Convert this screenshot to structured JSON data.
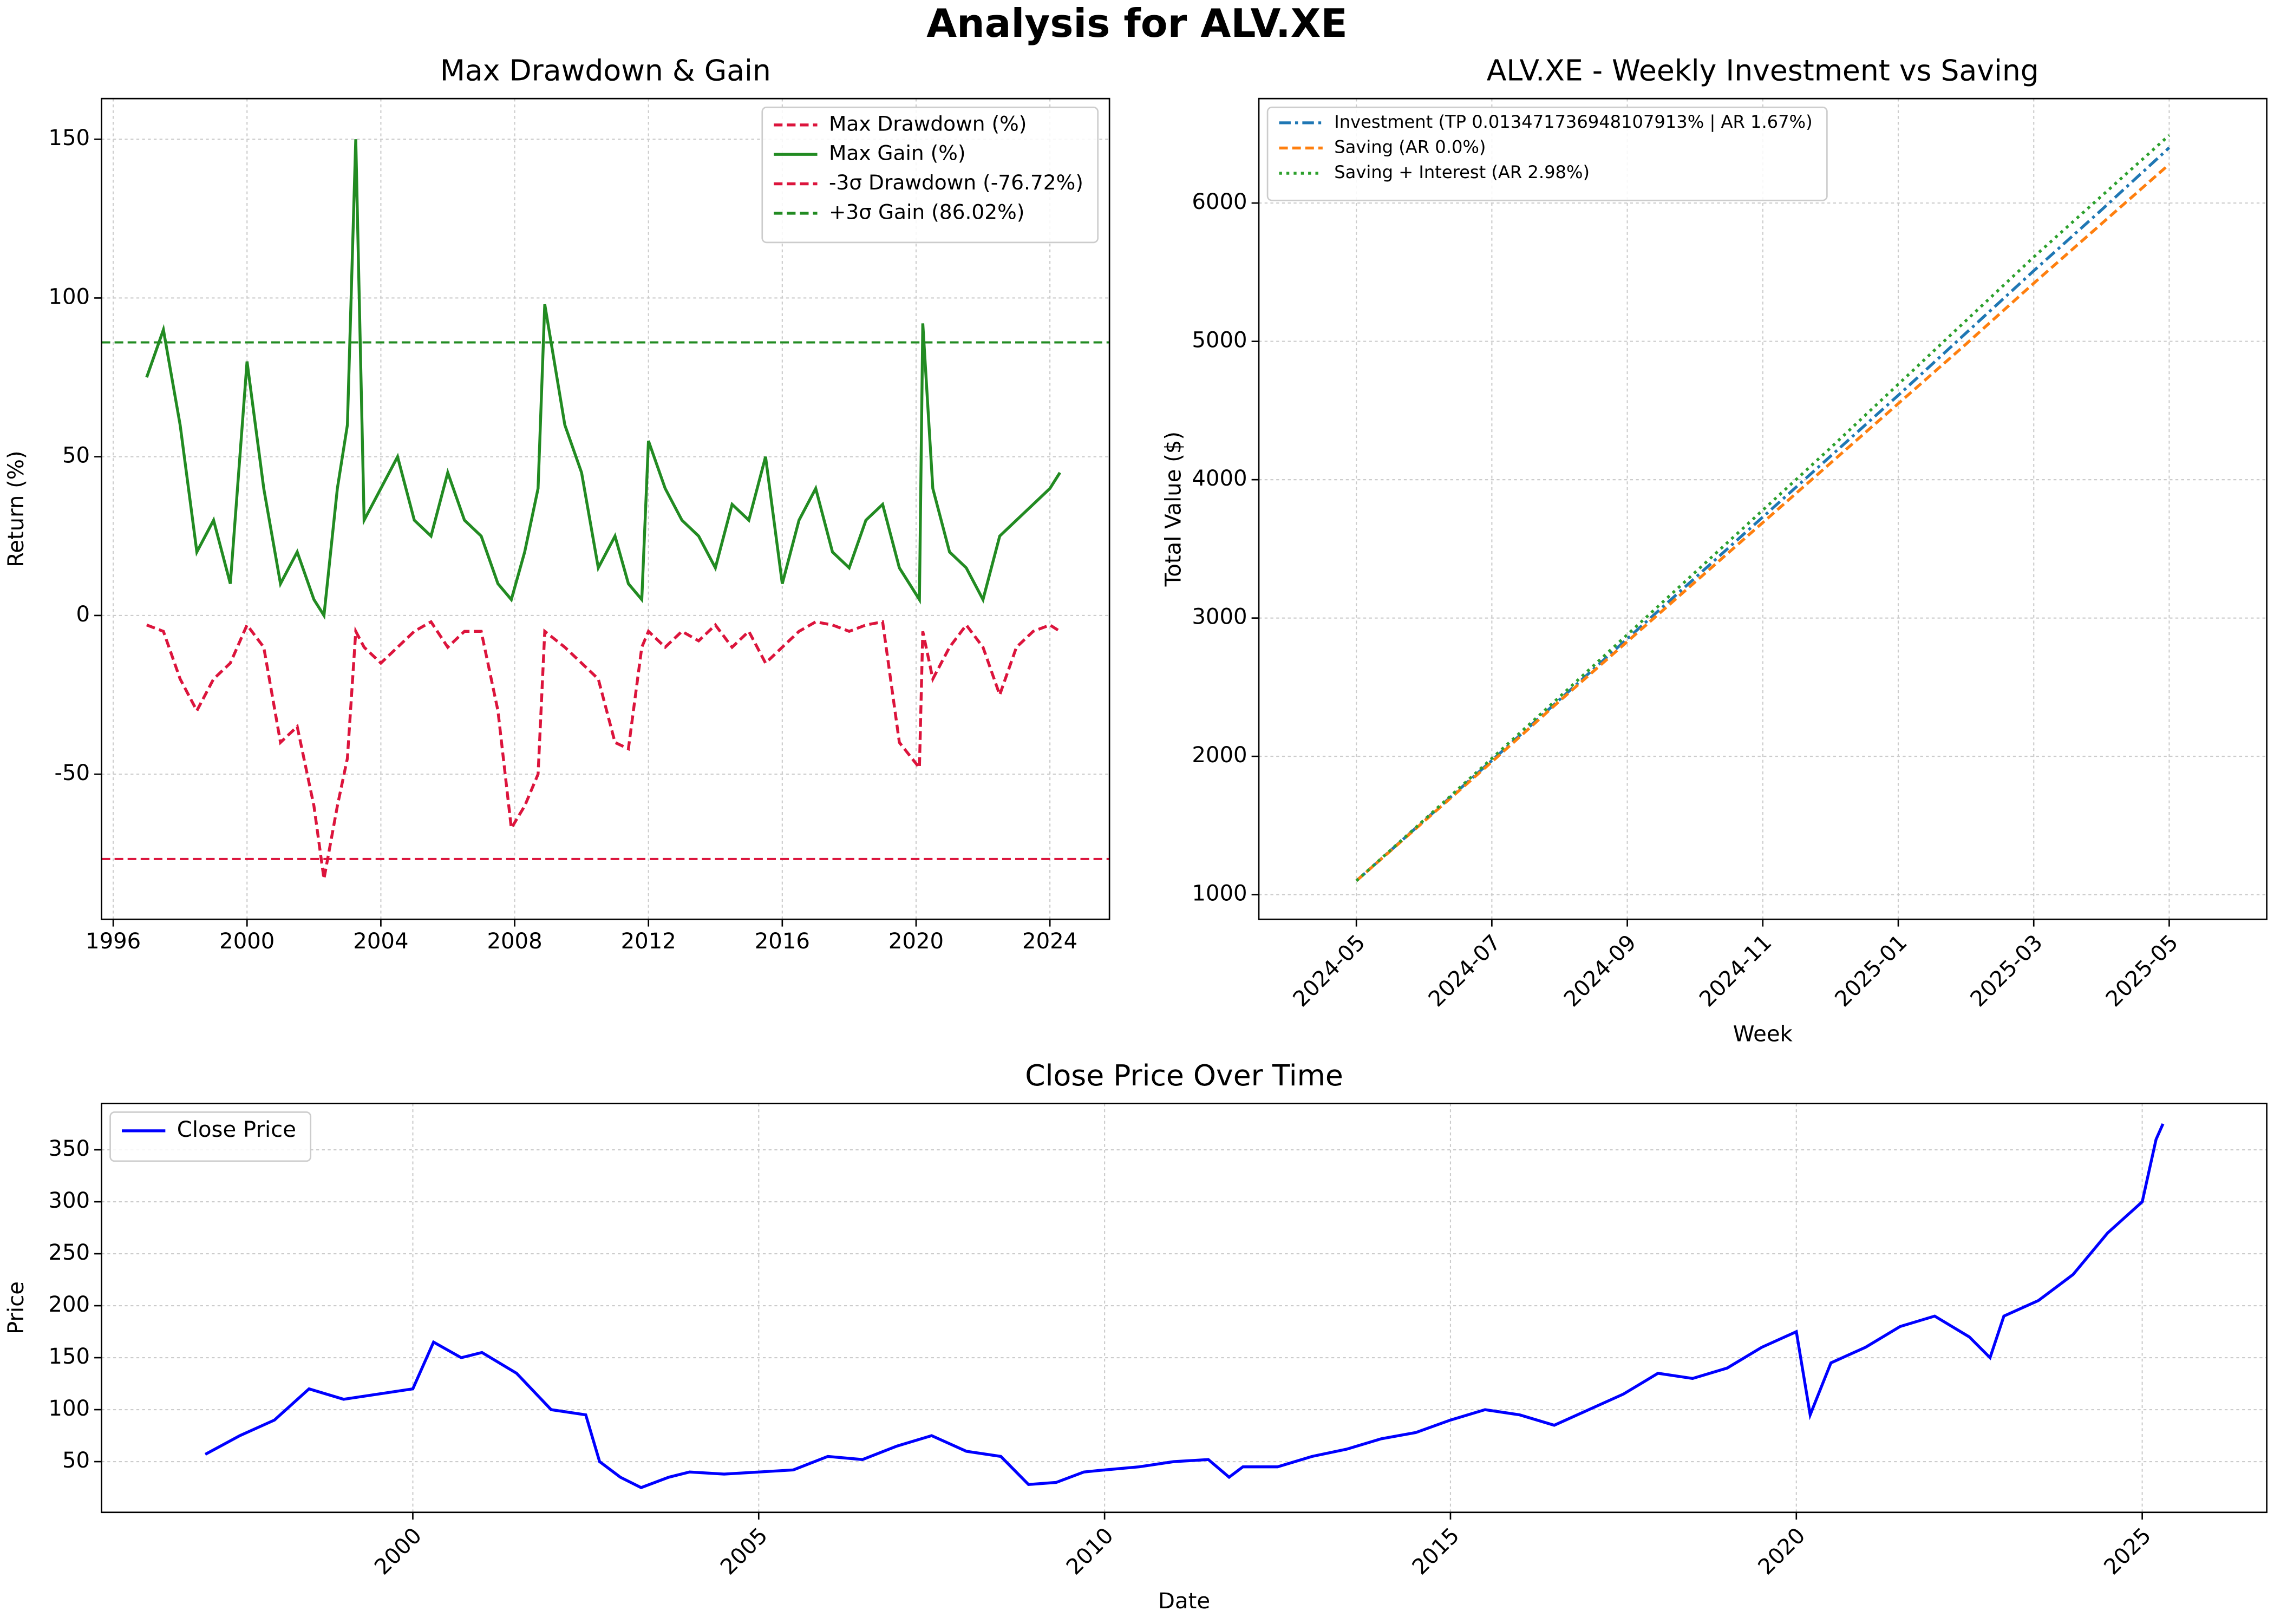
{
  "title": "Analysis for ALV.XE",
  "chart_data": [
    {
      "type": "line",
      "title": "Max Drawdown & Gain",
      "ylabel": "Return (%)",
      "x": [
        1997.0,
        1997.5,
        1998.0,
        1998.5,
        1999.0,
        1999.5,
        2000.0,
        2000.5,
        2001.0,
        2001.5,
        2002.0,
        2002.3,
        2002.7,
        2003.0,
        2003.25,
        2003.5,
        2004.0,
        2004.5,
        2005.0,
        2005.5,
        2006.0,
        2006.5,
        2007.0,
        2007.5,
        2007.9,
        2008.3,
        2008.7,
        2008.9,
        2009.5,
        2010.0,
        2010.5,
        2011.0,
        2011.4,
        2011.8,
        2012.0,
        2012.5,
        2013.0,
        2013.5,
        2014.0,
        2014.5,
        2015.0,
        2015.5,
        2016.0,
        2016.5,
        2017.0,
        2017.5,
        2018.0,
        2018.5,
        2019.0,
        2019.5,
        2020.1,
        2020.2,
        2020.5,
        2021.0,
        2021.5,
        2022.0,
        2022.5,
        2023.0,
        2023.5,
        2024.0,
        2024.3
      ],
      "series": [
        {
          "name": "Max Drawdown (%)",
          "color": "#dc143c",
          "style": "dashed",
          "values": [
            -3,
            -5,
            -20,
            -30,
            -20,
            -15,
            -3,
            -10,
            -40,
            -35,
            -60,
            -83,
            -60,
            -45,
            -5,
            -10,
            -15,
            -10,
            -5,
            -2,
            -10,
            -5,
            -5,
            -30,
            -67,
            -60,
            -50,
            -5,
            -10,
            -15,
            -20,
            -40,
            -42,
            -10,
            -5,
            -10,
            -5,
            -8,
            -3,
            -10,
            -5,
            -15,
            -10,
            -5,
            -2,
            -3,
            -5,
            -3,
            -2,
            -40,
            -48,
            -5,
            -20,
            -10,
            -3,
            -10,
            -25,
            -10,
            -5,
            -3,
            -5
          ]
        },
        {
          "name": "Max Gain (%)",
          "color": "#228b22",
          "style": "solid",
          "values": [
            75,
            90,
            60,
            20,
            30,
            10,
            80,
            40,
            10,
            20,
            5,
            0,
            40,
            60,
            150,
            30,
            40,
            50,
            30,
            25,
            45,
            30,
            25,
            10,
            5,
            20,
            40,
            98,
            60,
            45,
            15,
            25,
            10,
            5,
            55,
            40,
            30,
            25,
            15,
            35,
            30,
            50,
            10,
            30,
            40,
            20,
            15,
            30,
            35,
            15,
            5,
            92,
            40,
            20,
            15,
            5,
            25,
            30,
            35,
            40,
            45
          ]
        }
      ],
      "hlines": [
        {
          "name": "-3σ Drawdown (-76.72%)",
          "value": -76.72,
          "color": "#dc143c",
          "style": "dashed"
        },
        {
          "name": "+3σ Gain (86.02%)",
          "value": 86.02,
          "color": "#228b22",
          "style": "dashed"
        }
      ],
      "xlim": [
        1995.65,
        2025.78
      ],
      "ylim": [
        -95.7,
        162.8
      ],
      "xticks": [
        1996,
        2000,
        2004,
        2008,
        2012,
        2016,
        2020,
        2024
      ],
      "yticks": [
        -50,
        0,
        50,
        100,
        150
      ],
      "grid": true,
      "legend": "upper right"
    },
    {
      "type": "line",
      "title": "ALV.XE - Weekly Investment vs Saving",
      "xlabel": "Week",
      "ylabel": "Total Value ($)",
      "x": [
        "2024-05",
        "2024-06",
        "2024-07",
        "2024-08",
        "2024-09",
        "2024-10",
        "2024-11",
        "2024-12",
        "2025-01",
        "2025-02",
        "2025-03",
        "2025-04",
        "2025-05"
      ],
      "series": [
        {
          "name": "Investment (TP 0.013471736948107913% | AR 1.67%)",
          "color": "#1f77b4",
          "style": "dashdot",
          "values": [
            1100,
            1535,
            1970,
            2410,
            2850,
            3290,
            3730,
            4170,
            4610,
            5060,
            5510,
            5950,
            6400
          ]
        },
        {
          "name": "Saving (AR 0.0%)",
          "color": "#ff7f0e",
          "style": "dashed",
          "values": [
            1100,
            1530,
            1960,
            2400,
            2830,
            3260,
            3690,
            4120,
            4550,
            4980,
            5420,
            5850,
            6280
          ]
        },
        {
          "name": "Saving + Interest (AR 2.98%)",
          "color": "#2ca02c",
          "style": "dotted",
          "values": [
            1100,
            1540,
            1985,
            2430,
            2880,
            3330,
            3780,
            4230,
            4690,
            5150,
            5610,
            6050,
            6490
          ]
        }
      ],
      "ylim": [
        822,
        6755
      ],
      "xticks": [
        "2024-05",
        "2024-07",
        "2024-09",
        "2024-11",
        "2025-01",
        "2025-03",
        "2025-05"
      ],
      "yticks": [
        1000,
        2000,
        3000,
        4000,
        5000,
        6000
      ],
      "grid": true,
      "legend": "upper left"
    },
    {
      "type": "line",
      "title": "Close Price Over Time",
      "xlabel": "Date",
      "ylabel": "Price",
      "x": [
        1997.0,
        1997.5,
        1998.0,
        1998.5,
        1999.0,
        1999.5,
        2000.0,
        2000.3,
        2000.7,
        2001.0,
        2001.5,
        2002.0,
        2002.5,
        2002.7,
        2003.0,
        2003.3,
        2003.7,
        2004.0,
        2004.5,
        2005.0,
        2005.5,
        2006.0,
        2006.5,
        2007.0,
        2007.5,
        2008.0,
        2008.5,
        2008.9,
        2009.3,
        2009.7,
        2010.0,
        2010.5,
        2011.0,
        2011.5,
        2011.8,
        2012.0,
        2012.5,
        2013.0,
        2013.5,
        2014.0,
        2014.5,
        2015.0,
        2015.5,
        2016.0,
        2016.5,
        2017.0,
        2017.5,
        2018.0,
        2018.5,
        2019.0,
        2019.5,
        2020.0,
        2020.2,
        2020.5,
        2021.0,
        2021.5,
        2022.0,
        2022.5,
        2022.8,
        2023.0,
        2023.5,
        2024.0,
        2024.5,
        2025.0,
        2025.2,
        2025.3
      ],
      "series": [
        {
          "name": "Close Price",
          "color": "#0000ff",
          "style": "solid",
          "values": [
            57,
            75,
            90,
            120,
            110,
            115,
            120,
            165,
            150,
            155,
            135,
            100,
            95,
            50,
            35,
            25,
            35,
            40,
            38,
            40,
            42,
            55,
            52,
            65,
            75,
            60,
            55,
            28,
            30,
            40,
            42,
            45,
            50,
            52,
            35,
            45,
            45,
            55,
            62,
            72,
            78,
            90,
            100,
            95,
            85,
            100,
            115,
            135,
            130,
            140,
            160,
            175,
            95,
            145,
            160,
            180,
            190,
            170,
            150,
            190,
            205,
            230,
            270,
            300,
            360,
            375
          ]
        }
      ],
      "xlim": [
        1995.5,
        2026.8
      ],
      "ylim": [
        1.2,
        394.6
      ],
      "xticks": [
        2000,
        2005,
        2010,
        2015,
        2020,
        2025
      ],
      "yticks": [
        50,
        100,
        150,
        200,
        250,
        300,
        350
      ],
      "grid": true,
      "legend": "upper left"
    }
  ]
}
